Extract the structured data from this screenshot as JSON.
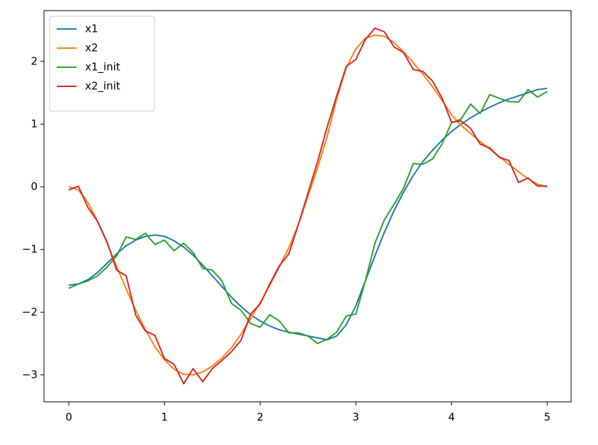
{
  "chart_data": {
    "type": "line",
    "x": [
      0,
      0.1,
      0.2,
      0.3,
      0.4,
      0.5,
      0.6,
      0.7,
      0.8,
      0.9,
      1,
      1.1,
      1.2,
      1.3,
      1.4,
      1.5,
      1.6,
      1.7,
      1.8,
      1.9,
      2,
      2.1,
      2.2,
      2.3,
      2.4,
      2.5,
      2.6,
      2.7,
      2.8,
      2.9,
      3,
      3.1,
      3.2,
      3.3,
      3.4,
      3.5,
      3.6,
      3.7,
      3.8,
      3.9,
      4,
      4.1,
      4.2,
      4.3,
      4.4,
      4.5,
      4.6,
      4.7,
      4.8,
      4.9,
      5
    ],
    "series": [
      {
        "name": "x1",
        "color": "#1f77b4",
        "values": [
          -1.57,
          -1.55,
          -1.48,
          -1.37,
          -1.22,
          -1.07,
          -0.94,
          -0.85,
          -0.79,
          -0.77,
          -0.79,
          -0.86,
          -0.96,
          -1.09,
          -1.25,
          -1.42,
          -1.59,
          -1.76,
          -1.91,
          -2.04,
          -2.14,
          -2.22,
          -2.28,
          -2.32,
          -2.35,
          -2.38,
          -2.41,
          -2.44,
          -2.38,
          -2.2,
          -1.9,
          -1.5,
          -1.1,
          -0.72,
          -0.38,
          -0.08,
          0.18,
          0.4,
          0.58,
          0.74,
          0.88,
          1.0,
          1.1,
          1.19,
          1.27,
          1.34,
          1.4,
          1.45,
          1.5,
          1.55,
          1.57
        ]
      },
      {
        "name": "x2",
        "color": "#ff7f0e",
        "values": [
          0,
          -0.05,
          -0.25,
          -0.55,
          -0.9,
          -1.27,
          -1.63,
          -1.97,
          -2.28,
          -2.55,
          -2.76,
          -2.91,
          -2.99,
          -3.0,
          -2.95,
          -2.86,
          -2.73,
          -2.57,
          -2.35,
          -2.1,
          -1.85,
          -1.57,
          -1.28,
          -0.97,
          -0.6,
          -0.15,
          0.3,
          0.8,
          1.4,
          1.9,
          2.2,
          2.37,
          2.42,
          2.4,
          2.3,
          2.15,
          1.98,
          1.8,
          1.6,
          1.38,
          1.15,
          0.98,
          0.85,
          0.72,
          0.6,
          0.48,
          0.36,
          0.24,
          0.13,
          0.04,
          0
        ]
      },
      {
        "name": "x1_init",
        "color": "#2ca02c",
        "values": [
          -1.62,
          -1.55,
          -1.5,
          -1.42,
          -1.28,
          -1.1,
          -0.8,
          -0.84,
          -0.74,
          -0.92,
          -0.85,
          -1.02,
          -0.9,
          -1.05,
          -1.3,
          -1.33,
          -1.5,
          -1.86,
          -1.97,
          -2.18,
          -2.24,
          -2.04,
          -2.14,
          -2.33,
          -2.33,
          -2.38,
          -2.5,
          -2.43,
          -2.32,
          -2.06,
          -2.03,
          -1.5,
          -0.9,
          -0.52,
          -0.28,
          -0.02,
          0.37,
          0.36,
          0.44,
          0.68,
          1.02,
          1.08,
          1.32,
          1.17,
          1.47,
          1.41,
          1.36,
          1.35,
          1.55,
          1.43,
          1.52
        ]
      },
      {
        "name": "x2_init",
        "color": "#d62728",
        "values": [
          -0.05,
          0.01,
          -0.33,
          -0.55,
          -0.88,
          -1.33,
          -1.42,
          -2.05,
          -2.3,
          -2.37,
          -2.74,
          -2.83,
          -3.14,
          -2.9,
          -3.11,
          -2.9,
          -2.77,
          -2.63,
          -2.45,
          -2.03,
          -1.87,
          -1.55,
          -1.26,
          -1.07,
          -0.6,
          -0.1,
          0.4,
          0.95,
          1.45,
          1.92,
          2.03,
          2.35,
          2.53,
          2.47,
          2.23,
          2.14,
          1.87,
          1.84,
          1.69,
          1.42,
          1.03,
          1.05,
          0.93,
          0.68,
          0.62,
          0.47,
          0.42,
          0.07,
          0.14,
          0.01,
          0.01
        ]
      }
    ],
    "xlim": [
      -0.26,
      5.25
    ],
    "ylim": [
      -3.43,
      2.81
    ],
    "xticks": [
      0,
      1,
      2,
      3,
      4,
      5
    ],
    "yticks": [
      {
        "value": -3,
        "label": "−3"
      },
      {
        "value": -2,
        "label": "−2"
      },
      {
        "value": -1,
        "label": "−1"
      },
      0,
      1,
      2
    ],
    "legend": "upper left"
  }
}
